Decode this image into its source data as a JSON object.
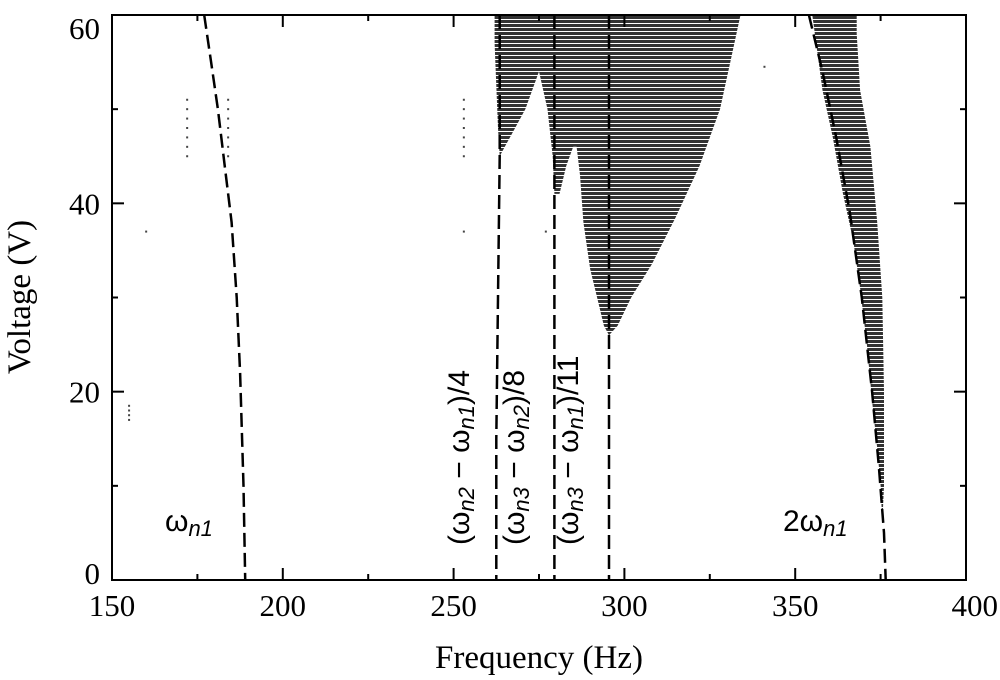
{
  "chart_data": {
    "type": "scatter",
    "title": "",
    "xlabel": "Frequency (Hz)",
    "ylabel": "Voltage (V)",
    "xlim": [
      150,
      400
    ],
    "ylim": [
      0,
      60
    ],
    "x_ticks": [
      "150",
      "200",
      "250",
      "300",
      "350",
      "400"
    ],
    "y_ticks": [
      "0",
      "20",
      "40",
      "60"
    ],
    "grid": false,
    "colors": {
      "marker": "#333333",
      "curve": "#000000"
    },
    "regions": [
      {
        "shape": "instability-region",
        "boundary": [
          [
            262,
            60
          ],
          [
            262,
            57
          ],
          [
            263,
            48
          ],
          [
            263.5,
            45
          ],
          [
            265,
            46
          ],
          [
            268,
            48
          ],
          [
            271,
            50
          ],
          [
            275,
            54
          ],
          [
            277.5,
            50
          ],
          [
            279,
            45
          ],
          [
            279.5,
            41
          ],
          [
            281,
            41
          ],
          [
            283,
            44
          ],
          [
            285,
            46
          ],
          [
            286,
            46
          ],
          [
            287,
            43
          ],
          [
            288,
            38
          ],
          [
            290,
            33
          ],
          [
            292,
            30
          ],
          [
            294,
            27
          ],
          [
            295.5,
            26
          ],
          [
            298,
            27
          ],
          [
            302,
            30
          ],
          [
            308,
            33.5
          ],
          [
            315,
            38.5
          ],
          [
            322,
            44
          ],
          [
            328,
            50
          ],
          [
            331,
            55
          ],
          [
            334,
            60
          ]
        ]
      },
      {
        "shape": "instability-region",
        "boundary": [
          [
            355,
            60
          ],
          [
            358,
            52
          ],
          [
            361,
            47
          ],
          [
            364,
            41
          ],
          [
            367,
            36
          ],
          [
            369,
            31
          ],
          [
            371,
            25
          ],
          [
            372.5,
            19
          ],
          [
            374,
            14
          ],
          [
            375,
            10
          ],
          [
            375.5,
            6
          ],
          [
            376,
            10
          ],
          [
            376,
            20
          ],
          [
            375.5,
            30
          ],
          [
            374,
            38
          ],
          [
            372,
            46
          ],
          [
            369,
            52
          ],
          [
            368,
            58
          ],
          [
            368,
            60
          ]
        ]
      }
    ],
    "curves": [
      {
        "name": "ωn1",
        "label_base": "ω",
        "label_sub": "n1",
        "points": [
          [
            177,
            60
          ],
          [
            179,
            55
          ],
          [
            181,
            50
          ],
          [
            183,
            44
          ],
          [
            185,
            38
          ],
          [
            186.5,
            30
          ],
          [
            187.5,
            22
          ],
          [
            188.5,
            10
          ],
          [
            189,
            0
          ]
        ]
      },
      {
        "name": "(ωn2 − ωn1)/4",
        "label_open": "(ω",
        "label_sub1": "n2",
        "label_mid": " − ω",
        "label_sub2": "n1",
        "label_close": ")/4",
        "points": [
          [
            263.5,
            60
          ],
          [
            263.5,
            45
          ],
          [
            263,
            30
          ],
          [
            262.5,
            15
          ],
          [
            262.5,
            0
          ]
        ]
      },
      {
        "name": "(ωn3 − ωn2)/8",
        "label_open": "(ω",
        "label_sub1": "n3",
        "label_mid": " − ω",
        "label_sub2": "n2",
        "label_close": ")/8",
        "points": [
          [
            279.5,
            60
          ],
          [
            279.5,
            41
          ],
          [
            279.5,
            20
          ],
          [
            279.5,
            0
          ]
        ]
      },
      {
        "name": "(ωn3 − ωn1)/11",
        "label_open": "(ω",
        "label_sub1": "n3",
        "label_mid": " − ω",
        "label_sub2": "n1",
        "label_close": ")/11",
        "points": [
          [
            295.5,
            60
          ],
          [
            295.5,
            26
          ],
          [
            295.5,
            10
          ],
          [
            295.5,
            0
          ]
        ]
      },
      {
        "name": "2ωn1",
        "label_base": "2ω",
        "label_sub": "n1",
        "points": [
          [
            354,
            60
          ],
          [
            358,
            54
          ],
          [
            362,
            47
          ],
          [
            366,
            39
          ],
          [
            369.5,
            30
          ],
          [
            372.5,
            20
          ],
          [
            374.5,
            12
          ],
          [
            376,
            5
          ],
          [
            376.5,
            0
          ]
        ]
      }
    ],
    "stray_points": [
      [
        172,
        45
      ],
      [
        172,
        46
      ],
      [
        172,
        47
      ],
      [
        172,
        48
      ],
      [
        172,
        49
      ],
      [
        172,
        50
      ],
      [
        172,
        51
      ],
      [
        184,
        45
      ],
      [
        184,
        46
      ],
      [
        184,
        47
      ],
      [
        184,
        48
      ],
      [
        184,
        49
      ],
      [
        184,
        50
      ],
      [
        184,
        51
      ],
      [
        253,
        45
      ],
      [
        253,
        46
      ],
      [
        253,
        47
      ],
      [
        253,
        48
      ],
      [
        253,
        49
      ],
      [
        253,
        50
      ],
      [
        253,
        51
      ],
      [
        155,
        17
      ],
      [
        155,
        17.5
      ],
      [
        155,
        18
      ],
      [
        155,
        18.5
      ],
      [
        160,
        37
      ],
      [
        253,
        37
      ],
      [
        277,
        37
      ],
      [
        341,
        54.5
      ]
    ]
  }
}
